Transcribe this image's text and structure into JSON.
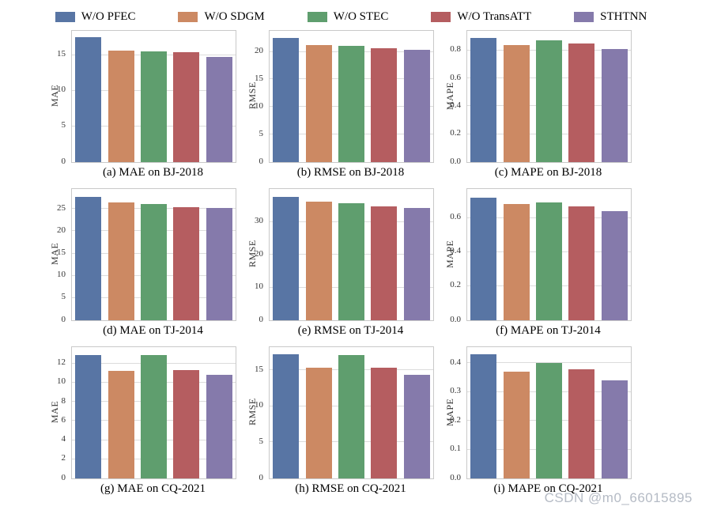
{
  "legend": {
    "series": [
      {
        "label": "W/O PFEC",
        "color": "#5875A4"
      },
      {
        "label": "W/O SDGM",
        "color": "#CC8963"
      },
      {
        "label": "W/O STEC",
        "color": "#5F9E6E"
      },
      {
        "label": "W/O TransATT",
        "color": "#B55D60"
      },
      {
        "label": "STHTNN",
        "color": "#857AAB"
      }
    ]
  },
  "watermark": {
    "text": "CSDN @m0_66015895"
  },
  "chart_data": [
    {
      "type": "bar",
      "title": "(a) MAE on BJ-2018",
      "ylabel": "MAE",
      "categories": [
        "W/O PFEC",
        "W/O SDGM",
        "W/O STEC",
        "W/O TransATT",
        "STHTNN"
      ],
      "values": [
        17.5,
        15.6,
        15.5,
        15.4,
        14.7
      ],
      "ticks": [
        0,
        5,
        10,
        15
      ],
      "ylim": [
        0,
        18.4
      ],
      "decimals": 0
    },
    {
      "type": "bar",
      "title": "(b) RMSE on BJ-2018",
      "ylabel": "RMSE",
      "categories": [
        "W/O PFEC",
        "W/O SDGM",
        "W/O STEC",
        "W/O TransATT",
        "STHTNN"
      ],
      "values": [
        22.5,
        21.2,
        21.1,
        20.6,
        20.3
      ],
      "ticks": [
        0,
        5,
        10,
        15,
        20
      ],
      "ylim": [
        0,
        23.8
      ],
      "decimals": 0
    },
    {
      "type": "bar",
      "title": "(c) MAPE on BJ-2018",
      "ylabel": "MAPE",
      "categories": [
        "W/O PFEC",
        "W/O SDGM",
        "W/O STEC",
        "W/O TransATT",
        "STHTNN"
      ],
      "values": [
        0.89,
        0.84,
        0.87,
        0.85,
        0.81
      ],
      "ticks": [
        0,
        0.2,
        0.4,
        0.6,
        0.8
      ],
      "ylim": [
        0,
        0.94
      ],
      "decimals": 1
    },
    {
      "type": "bar",
      "title": "(d) MAE on TJ-2014",
      "ylabel": "MAE",
      "categories": [
        "W/O PFEC",
        "W/O SDGM",
        "W/O STEC",
        "W/O TransATT",
        "STHTNN"
      ],
      "values": [
        27.7,
        26.4,
        26.1,
        25.4,
        25.2
      ],
      "ticks": [
        0,
        5,
        10,
        15,
        20,
        25
      ],
      "ylim": [
        0,
        29.5
      ],
      "decimals": 0
    },
    {
      "type": "bar",
      "title": "(e) RMSE on TJ-2014",
      "ylabel": "RMSE",
      "categories": [
        "W/O PFEC",
        "W/O SDGM",
        "W/O STEC",
        "W/O TransATT",
        "STHTNN"
      ],
      "values": [
        37.5,
        36.1,
        35.6,
        34.6,
        34.3
      ],
      "ticks": [
        0,
        10,
        20,
        30
      ],
      "ylim": [
        0,
        40
      ],
      "decimals": 0
    },
    {
      "type": "bar",
      "title": "(f) MAPE on TJ-2014",
      "ylabel": "MAPE",
      "categories": [
        "W/O PFEC",
        "W/O SDGM",
        "W/O STEC",
        "W/O TransATT",
        "STHTNN"
      ],
      "values": [
        0.72,
        0.68,
        0.69,
        0.67,
        0.64
      ],
      "ticks": [
        0,
        0.2,
        0.4,
        0.6
      ],
      "ylim": [
        0,
        0.77
      ],
      "decimals": 1
    },
    {
      "type": "bar",
      "title": "(g) MAE on CQ-2021",
      "ylabel": "MAE",
      "categories": [
        "W/O PFEC",
        "W/O SDGM",
        "W/O STEC",
        "W/O TransATT",
        "STHTNN"
      ],
      "values": [
        12.9,
        11.2,
        12.9,
        11.3,
        10.8
      ],
      "ticks": [
        0,
        2,
        4,
        6,
        8,
        10,
        12
      ],
      "ylim": [
        0,
        13.7
      ],
      "decimals": 0
    },
    {
      "type": "bar",
      "title": "(h) RMSE on CQ-2021",
      "ylabel": "RMSE",
      "categories": [
        "W/O PFEC",
        "W/O SDGM",
        "W/O STEC",
        "W/O TransATT",
        "STHTNN"
      ],
      "values": [
        17.2,
        15.3,
        17.1,
        15.3,
        14.4
      ],
      "ticks": [
        0,
        5,
        10,
        15
      ],
      "ylim": [
        0,
        18.2
      ],
      "decimals": 0
    },
    {
      "type": "bar",
      "title": "(i) MAPE on CQ-2021",
      "ylabel": "MAPE",
      "categories": [
        "W/O PFEC",
        "W/O SDGM",
        "W/O STEC",
        "W/O TransATT",
        "STHTNN"
      ],
      "values": [
        0.43,
        0.37,
        0.4,
        0.38,
        0.34
      ],
      "ticks": [
        0,
        0.1,
        0.2,
        0.3,
        0.4
      ],
      "ylim": [
        0,
        0.456
      ],
      "decimals": 1
    }
  ]
}
